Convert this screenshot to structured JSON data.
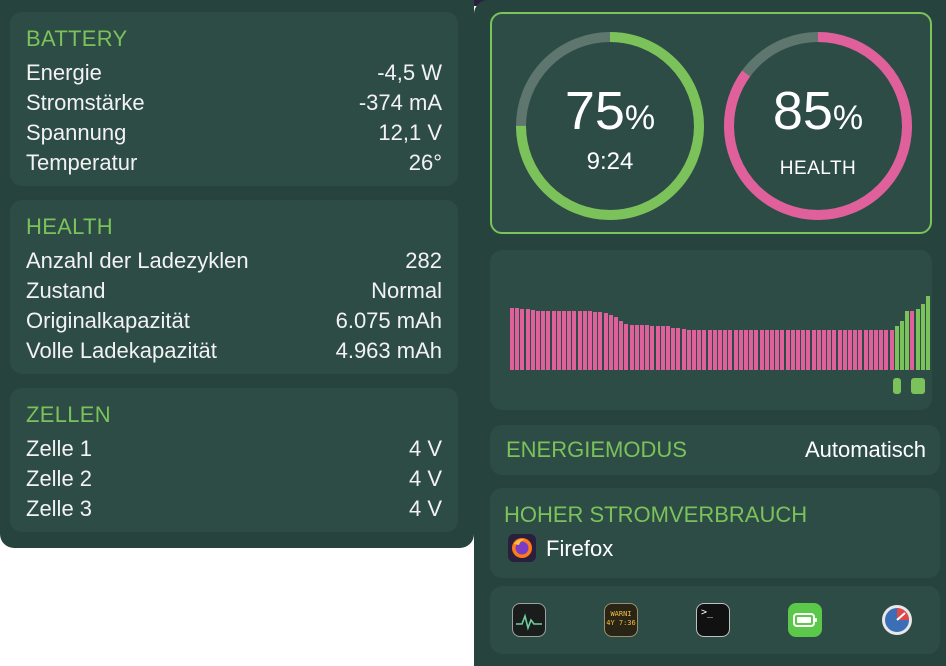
{
  "battery": {
    "title": "BATTERY",
    "rows": [
      {
        "label": "Energie",
        "value": "-4,5 W"
      },
      {
        "label": "Stromstärke",
        "value": "-374 mA"
      },
      {
        "label": "Spannung",
        "value": "12,1 V"
      },
      {
        "label": "Temperatur",
        "value": "26°"
      }
    ]
  },
  "health": {
    "title": "HEALTH",
    "rows": [
      {
        "label": "Anzahl der Ladezyklen",
        "value": "282"
      },
      {
        "label": "Zustand",
        "value": "Normal"
      },
      {
        "label": "Originalkapazität",
        "value": "6.075 mAh"
      },
      {
        "label": "Volle Ladekapazität",
        "value": "4.963 mAh"
      }
    ]
  },
  "cells": {
    "title": "ZELLEN",
    "rows": [
      {
        "label": "Zelle 1",
        "value": "4 V"
      },
      {
        "label": "Zelle 2",
        "value": "4 V"
      },
      {
        "label": "Zelle 3",
        "value": "4 V"
      }
    ]
  },
  "gauges": {
    "charge": {
      "value": "75",
      "unit": "%",
      "sub": "9:24",
      "fraction": 0.75,
      "color": "#7cc25a"
    },
    "health": {
      "value": "85",
      "unit": "%",
      "sub": "HEALTH",
      "fraction": 0.85,
      "color": "#e0609b"
    }
  },
  "history": {
    "colors": {
      "discharge": "#e0609b",
      "charge": "#7cc25a"
    },
    "bars": [
      {
        "level": 0.77,
        "state": "discharge"
      },
      {
        "level": 0.77,
        "state": "discharge"
      },
      {
        "level": 0.76,
        "state": "discharge"
      },
      {
        "level": 0.76,
        "state": "discharge"
      },
      {
        "level": 0.75,
        "state": "discharge"
      },
      {
        "level": 0.74,
        "state": "discharge"
      },
      {
        "level": 0.74,
        "state": "discharge"
      },
      {
        "level": 0.74,
        "state": "discharge"
      },
      {
        "level": 0.74,
        "state": "discharge"
      },
      {
        "level": 0.74,
        "state": "discharge"
      },
      {
        "level": 0.74,
        "state": "discharge"
      },
      {
        "level": 0.74,
        "state": "discharge"
      },
      {
        "level": 0.74,
        "state": "discharge"
      },
      {
        "level": 0.74,
        "state": "discharge"
      },
      {
        "level": 0.74,
        "state": "discharge"
      },
      {
        "level": 0.74,
        "state": "discharge"
      },
      {
        "level": 0.73,
        "state": "discharge"
      },
      {
        "level": 0.72,
        "state": "discharge"
      },
      {
        "level": 0.71,
        "state": "discharge"
      },
      {
        "level": 0.69,
        "state": "discharge"
      },
      {
        "level": 0.66,
        "state": "discharge"
      },
      {
        "level": 0.61,
        "state": "discharge"
      },
      {
        "level": 0.58,
        "state": "discharge"
      },
      {
        "level": 0.56,
        "state": "discharge"
      },
      {
        "level": 0.56,
        "state": "discharge"
      },
      {
        "level": 0.56,
        "state": "discharge"
      },
      {
        "level": 0.56,
        "state": "discharge"
      },
      {
        "level": 0.55,
        "state": "discharge"
      },
      {
        "level": 0.55,
        "state": "discharge"
      },
      {
        "level": 0.55,
        "state": "discharge"
      },
      {
        "level": 0.55,
        "state": "discharge"
      },
      {
        "level": 0.53,
        "state": "discharge"
      },
      {
        "level": 0.52,
        "state": "discharge"
      },
      {
        "level": 0.51,
        "state": "discharge"
      },
      {
        "level": 0.5,
        "state": "discharge"
      },
      {
        "level": 0.5,
        "state": "discharge"
      },
      {
        "level": 0.5,
        "state": "discharge"
      },
      {
        "level": 0.5,
        "state": "discharge"
      },
      {
        "level": 0.5,
        "state": "discharge"
      },
      {
        "level": 0.5,
        "state": "discharge"
      },
      {
        "level": 0.5,
        "state": "discharge"
      },
      {
        "level": 0.5,
        "state": "discharge"
      },
      {
        "level": 0.5,
        "state": "discharge"
      },
      {
        "level": 0.5,
        "state": "discharge"
      },
      {
        "level": 0.5,
        "state": "discharge"
      },
      {
        "level": 0.5,
        "state": "discharge"
      },
      {
        "level": 0.5,
        "state": "discharge"
      },
      {
        "level": 0.5,
        "state": "discharge"
      },
      {
        "level": 0.5,
        "state": "discharge"
      },
      {
        "level": 0.5,
        "state": "discharge"
      },
      {
        "level": 0.5,
        "state": "discharge"
      },
      {
        "level": 0.5,
        "state": "discharge"
      },
      {
        "level": 0.5,
        "state": "discharge"
      },
      {
        "level": 0.5,
        "state": "discharge"
      },
      {
        "level": 0.5,
        "state": "discharge"
      },
      {
        "level": 0.5,
        "state": "discharge"
      },
      {
        "level": 0.5,
        "state": "discharge"
      },
      {
        "level": 0.5,
        "state": "discharge"
      },
      {
        "level": 0.5,
        "state": "discharge"
      },
      {
        "level": 0.5,
        "state": "discharge"
      },
      {
        "level": 0.5,
        "state": "discharge"
      },
      {
        "level": 0.5,
        "state": "discharge"
      },
      {
        "level": 0.5,
        "state": "discharge"
      },
      {
        "level": 0.5,
        "state": "discharge"
      },
      {
        "level": 0.5,
        "state": "discharge"
      },
      {
        "level": 0.5,
        "state": "discharge"
      },
      {
        "level": 0.5,
        "state": "discharge"
      },
      {
        "level": 0.5,
        "state": "discharge"
      },
      {
        "level": 0.5,
        "state": "discharge"
      },
      {
        "level": 0.5,
        "state": "discharge"
      },
      {
        "level": 0.5,
        "state": "discharge"
      },
      {
        "level": 0.5,
        "state": "discharge"
      },
      {
        "level": 0.5,
        "state": "discharge"
      },
      {
        "level": 0.5,
        "state": "discharge"
      },
      {
        "level": 0.55,
        "state": "charge"
      },
      {
        "level": 0.61,
        "state": "charge"
      },
      {
        "level": 0.74,
        "state": "charge"
      },
      {
        "level": 0.74,
        "state": "discharge"
      },
      {
        "level": 0.76,
        "state": "charge"
      },
      {
        "level": 0.82,
        "state": "charge"
      },
      {
        "level": 0.92,
        "state": "charge"
      }
    ],
    "markers": [
      {
        "bar": 74,
        "width": 8
      },
      {
        "bar": 78,
        "width": 14
      }
    ]
  },
  "energy_mode": {
    "label": "ENERGIEMODUS",
    "value": "Automatisch"
  },
  "high_usage": {
    "title": "HOHER STROMVERBRAUCH",
    "app": "Firefox",
    "app_icon": "firefox-icon"
  },
  "dock": {
    "items": [
      {
        "name": "activity-monitor-icon"
      },
      {
        "name": "console-icon",
        "label": "WARNI\n4Y 7:36"
      },
      {
        "name": "terminal-icon",
        "label": ">_"
      },
      {
        "name": "battery-app-icon"
      },
      {
        "name": "speedometer-icon"
      }
    ]
  }
}
